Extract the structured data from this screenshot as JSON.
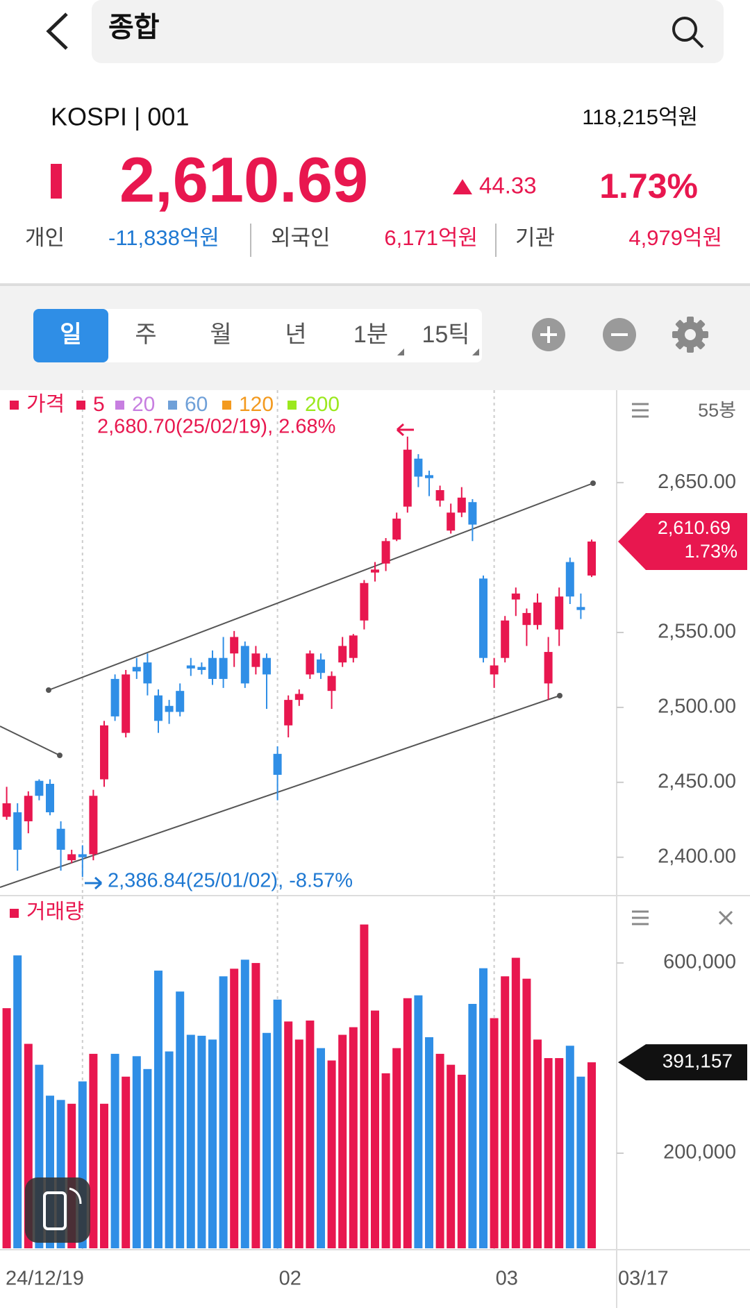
{
  "header": {
    "title": "종합"
  },
  "summary": {
    "name": "KOSPI | 001",
    "amount": "118,215억원",
    "price": "2,610.69",
    "change": "44.33",
    "change_rate": "1.73%"
  },
  "investors": [
    {
      "label": "개인",
      "value": "-11,838억원"
    },
    {
      "label": "외국인",
      "value": "6,171억원"
    },
    {
      "label": "기관",
      "value": "4,979억원"
    }
  ],
  "tabs": [
    "일",
    "주",
    "월",
    "년",
    "1분",
    "15틱"
  ],
  "selected_tab": 0,
  "chart_data": [
    {
      "type": "candlestick",
      "legend_label": "가격",
      "moving_averages": [
        {
          "name": "5",
          "color": "#e8174f"
        },
        {
          "name": "20",
          "color": "#c77ee0"
        },
        {
          "name": "60",
          "color": "#6fa0d8"
        },
        {
          "name": "120",
          "color": "#f39a1f"
        },
        {
          "name": "200",
          "color": "#9be81e"
        }
      ],
      "bar_count_label": "55봉",
      "up_color": "#e8174f",
      "down_color": "#2f8ee6",
      "categories": [
        null,
        null,
        null,
        null,
        null,
        null,
        null,
        "24/12/19",
        null,
        null,
        null,
        null,
        null,
        null,
        null,
        null,
        null,
        null,
        null,
        null,
        null,
        null,
        null,
        null,
        null,
        "02",
        null,
        null,
        null,
        null,
        null,
        null,
        null,
        null,
        null,
        null,
        null,
        null,
        null,
        null,
        null,
        null,
        null,
        null,
        null,
        "03",
        null,
        null,
        null,
        null,
        null,
        null,
        null,
        null,
        null
      ],
      "end_label": "03/17",
      "open": [
        2427,
        2430,
        2424,
        2451,
        2449,
        2419,
        2398,
        2402,
        2402,
        2452,
        2519,
        2483,
        2527,
        2530,
        2508,
        2501,
        2511,
        2528,
        2527,
        2533,
        2533,
        2536,
        2541,
        2527,
        2533,
        2469,
        2488,
        2505,
        2522,
        2532,
        2511,
        2530,
        2533,
        2558,
        2590,
        2596,
        2612,
        2634,
        2666,
        2655,
        2638,
        2618,
        2630,
        2637,
        2586,
        2522,
        2533,
        2572,
        2555,
        2555,
        2516,
        2552,
        2597,
        2567,
        2588
      ],
      "high": [
        2447,
        2436,
        2444,
        2452,
        2452,
        2424,
        2405,
        2408,
        2445,
        2491,
        2522,
        2525,
        2533,
        2536,
        2512,
        2505,
        2516,
        2533,
        2530,
        2538,
        2547,
        2551,
        2544,
        2541,
        2536,
        2474,
        2508,
        2512,
        2538,
        2536,
        2524,
        2547,
        2549,
        2585,
        2597,
        2613,
        2630,
        2680.7,
        2669,
        2658,
        2648,
        2636,
        2647,
        2639,
        2588,
        2533,
        2561,
        2580,
        2566,
        2576,
        2547,
        2580,
        2600,
        2576,
        2612
      ],
      "low": [
        2425,
        2391,
        2416,
        2438,
        2428,
        2391,
        2396,
        2386.84,
        2398,
        2447,
        2491,
        2480,
        2519,
        2508,
        2483,
        2489,
        2494,
        2521,
        2522,
        2515,
        2513,
        2527,
        2513,
        2522,
        2499,
        2438,
        2480,
        2501,
        2519,
        2519,
        2499,
        2527,
        2530,
        2552,
        2584,
        2591,
        2611,
        2630,
        2647,
        2641,
        2634,
        2616,
        2627,
        2611,
        2530,
        2513,
        2530,
        2561,
        2541,
        2552,
        2505,
        2541,
        2569,
        2559,
        2587
      ],
      "close": [
        2436,
        2405,
        2441,
        2441,
        2430,
        2405,
        2402,
        2400,
        2441,
        2488,
        2494,
        2522,
        2524,
        2516,
        2491,
        2497,
        2497,
        2526,
        2525,
        2519,
        2519,
        2547,
        2516,
        2536,
        2522,
        2455,
        2505,
        2509,
        2536,
        2523,
        2521,
        2541,
        2548,
        2583,
        2592,
        2611,
        2626,
        2672,
        2654,
        2653,
        2645,
        2630,
        2640,
        2622,
        2533,
        2528,
        2558,
        2576,
        2563,
        2570,
        2537,
        2574,
        2574,
        2565,
        2610.69
      ],
      "high_annotation": "2,680.70(25/02/19), 2.68%",
      "low_annotation": "2,386.84(25/01/02), -8.57%",
      "ylim": [
        2374.4,
        2711.7
      ],
      "yticks": [
        {
          "value": 2650,
          "label": "2,650.00"
        },
        {
          "value": 2550,
          "label": "2,550.00"
        },
        {
          "value": 2500,
          "label": "2,500.00"
        },
        {
          "value": 2450,
          "label": "2,450.00"
        },
        {
          "value": 2400,
          "label": "2,400.00"
        }
      ]
    },
    {
      "type": "bar",
      "title": "거래량",
      "values": [
        505000,
        616000,
        430000,
        386000,
        321000,
        312000,
        304000,
        351000,
        409000,
        304000,
        409000,
        361000,
        404000,
        377000,
        584000,
        414000,
        540000,
        449000,
        447000,
        439000,
        572000,
        588000,
        607000,
        600000,
        453000,
        523000,
        477000,
        439000,
        479000,
        421000,
        395000,
        449000,
        465000,
        681000,
        500000,
        368000,
        421000,
        526000,
        532000,
        444000,
        409000,
        386000,
        365000,
        514000,
        589000,
        484000,
        572000,
        611000,
        567000,
        439000,
        400000,
        400000,
        426000,
        361000,
        391157
      ],
      "current_label": "391,157",
      "ylim": [
        0,
        733000
      ],
      "yticks": [
        {
          "value": 600000,
          "label": "600,000"
        },
        {
          "value": 200000,
          "label": "200,000"
        }
      ]
    }
  ]
}
